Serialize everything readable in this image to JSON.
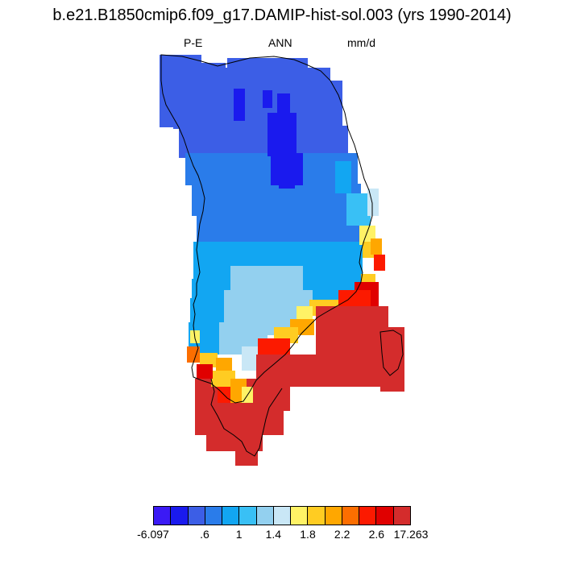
{
  "title": "b.e21.B1850cmip6.f09_g17.DAMIP-hist-sol.003 (yrs 1990-2014)",
  "subtitle": {
    "left": "P-E",
    "center": "ANN",
    "right": "mm/d"
  },
  "colorbar": {
    "colors": [
      "#3b1af5",
      "#1a1aee",
      "#3c5ee6",
      "#2a7cea",
      "#12a6f2",
      "#39c0f5",
      "#93d0ef",
      "#c9e7f6",
      "#fff266",
      "#ffcc22",
      "#ffa700",
      "#fc6e00",
      "#fc1a00",
      "#e00000",
      "#d42c2c"
    ],
    "tick_labels": [
      {
        "label": "-6.097",
        "index": 0
      },
      {
        "label": ".6",
        "index": 3
      },
      {
        "label": "1",
        "index": 5
      },
      {
        "label": "1.4",
        "index": 7
      },
      {
        "label": "1.8",
        "index": 9
      },
      {
        "label": "2.2",
        "index": 11
      },
      {
        "label": "2.6",
        "index": 13
      },
      {
        "label": "17.263",
        "index": 15
      }
    ]
  },
  "map": {
    "region": "Greenland",
    "variable": "P-E",
    "season": "ANN",
    "units": "mm/d"
  }
}
